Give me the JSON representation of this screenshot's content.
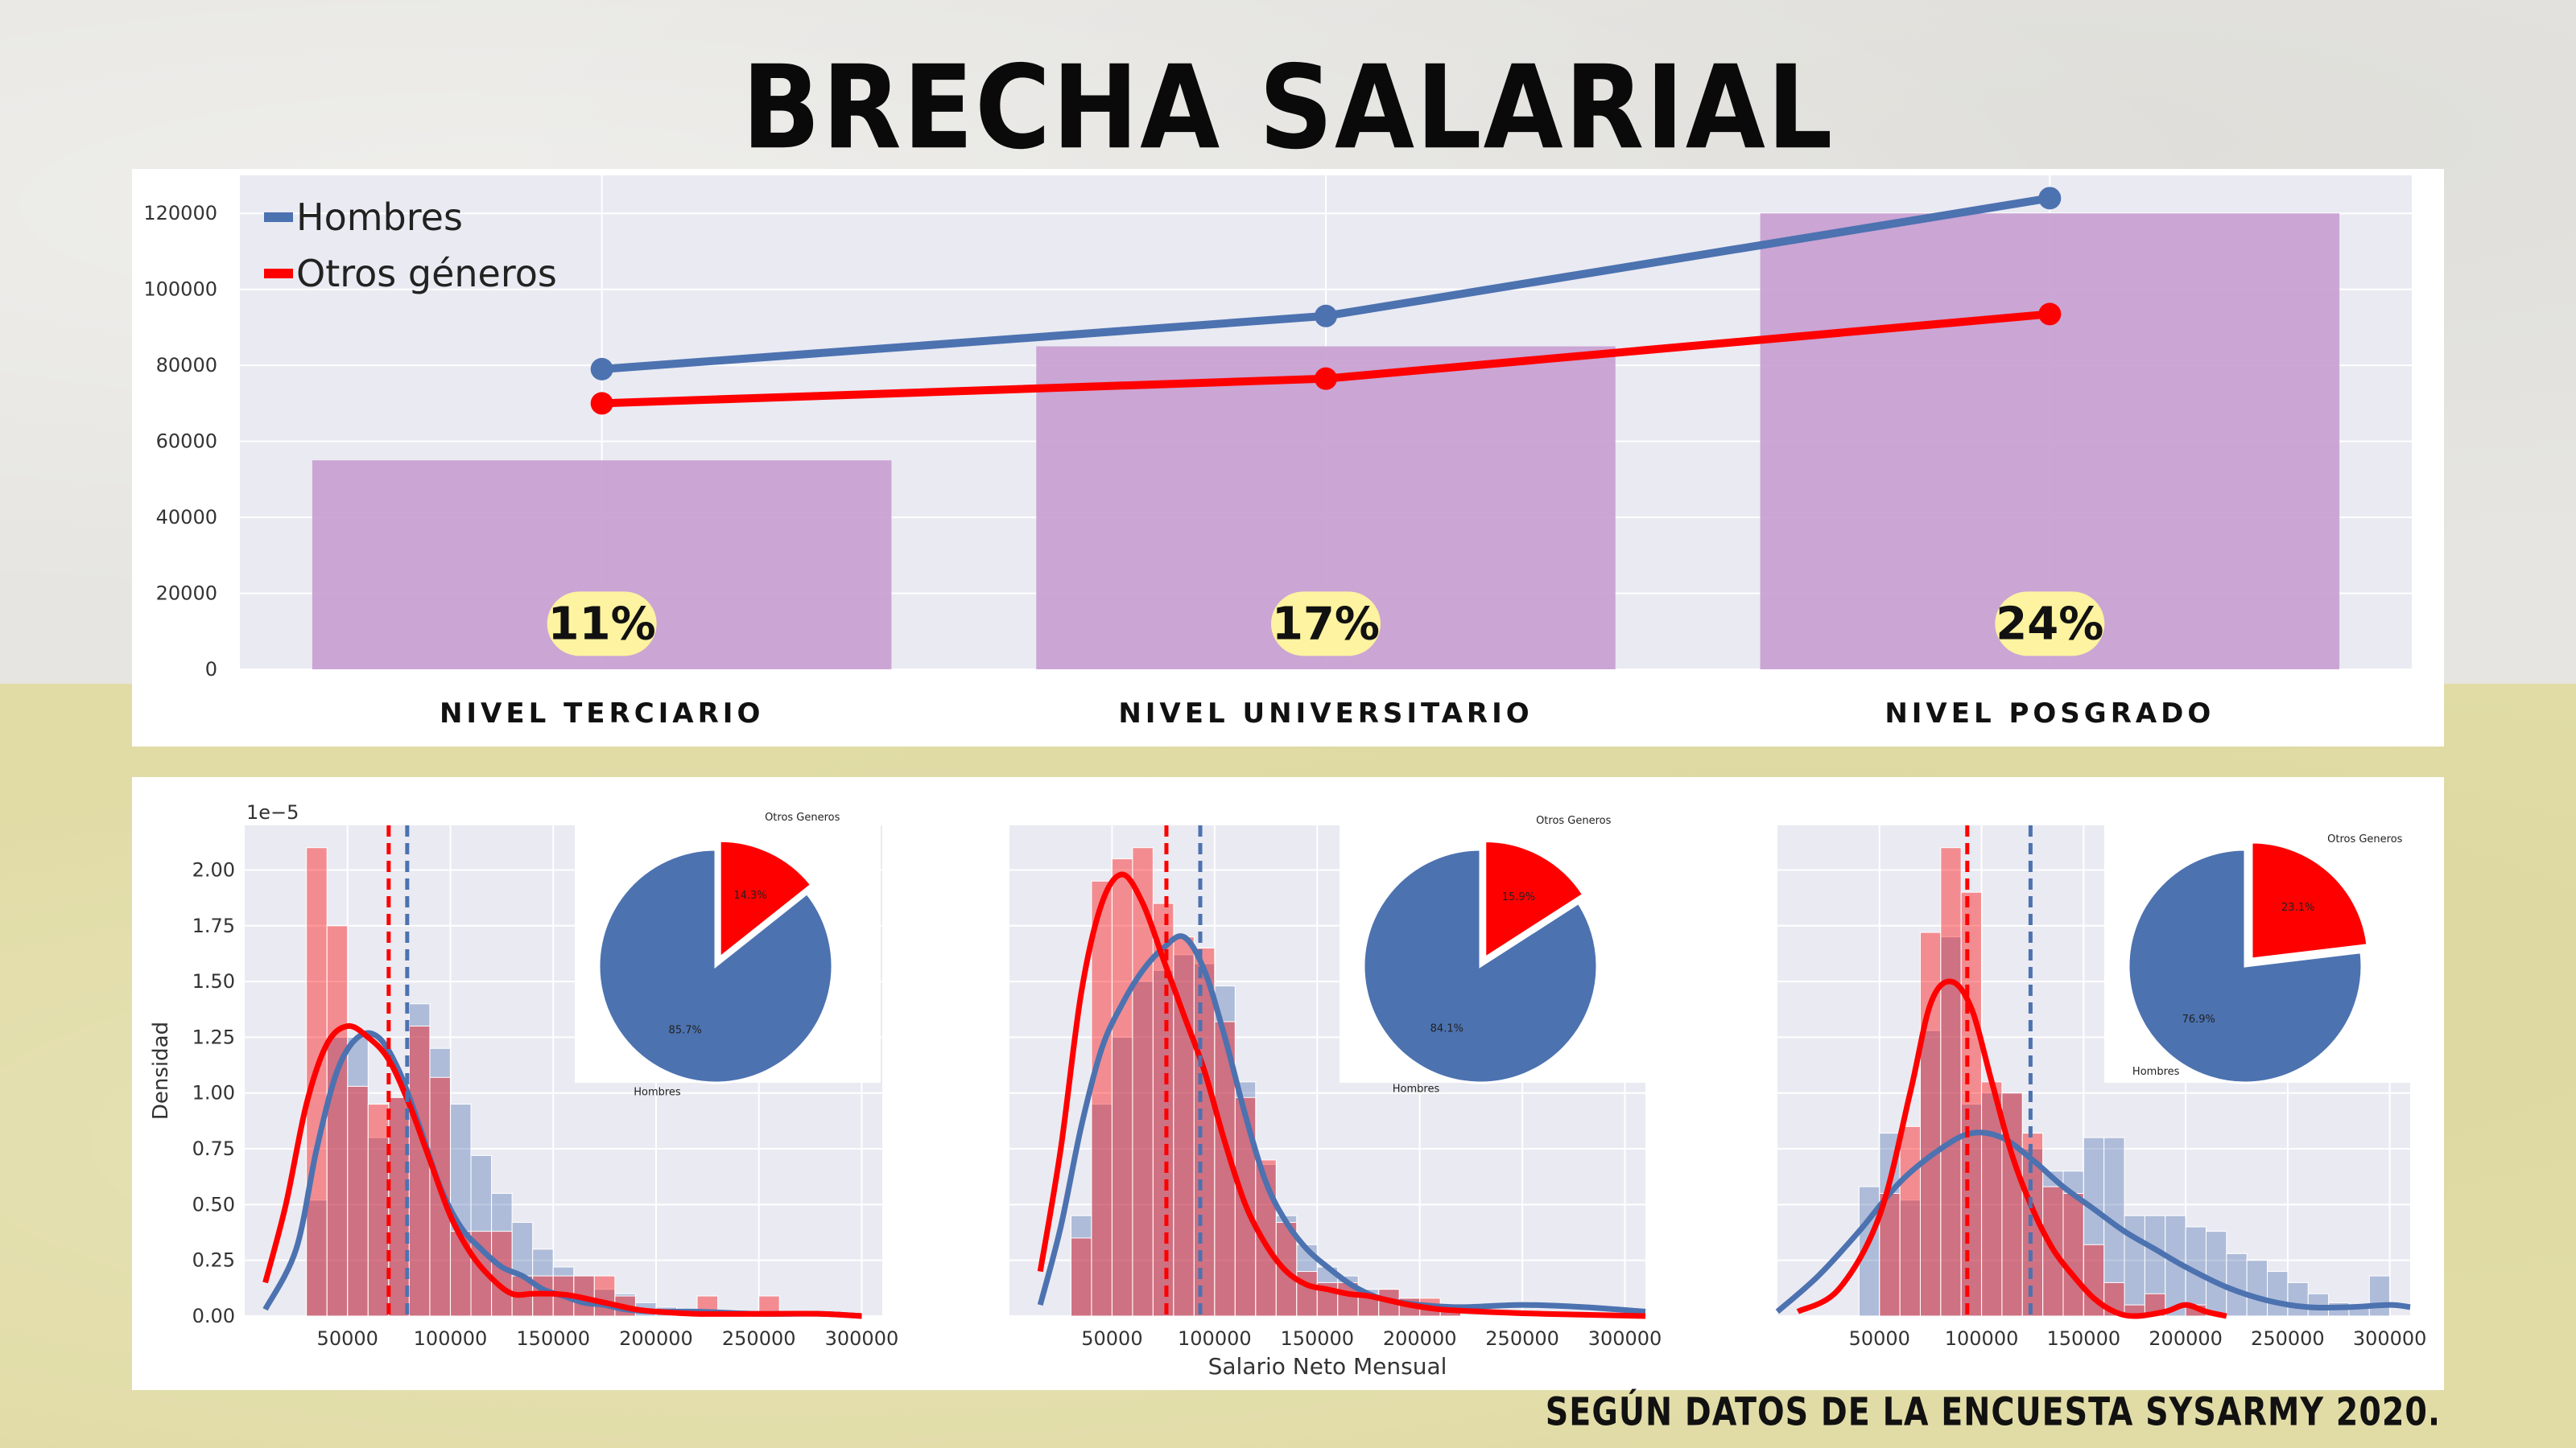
{
  "title": "BRECHA SALARIAL",
  "source_note": "SEGÚN DATOS DE LA ENCUESTA SYSARMY 2020.",
  "colors": {
    "hombres": "#4c72b0",
    "otros": "#ff0000",
    "bar": "#c9a1d2",
    "pill": "#fdf3a0",
    "plot_bg": "#eaeaf2"
  },
  "chart_data": [
    {
      "type": "bar",
      "categories": [
        "NIVEL TERCIARIO",
        "NIVEL UNIVERSITARIO",
        "NIVEL POSGRADO"
      ],
      "bar_values": [
        55000,
        85000,
        120000
      ],
      "bar_labels": [
        "11%",
        "17%",
        "24%"
      ],
      "series": [
        {
          "name": "Hombres",
          "type": "line",
          "values": [
            79000,
            93000,
            124000
          ]
        },
        {
          "name": "Otros géneros",
          "type": "line",
          "values": [
            70000,
            76500,
            93500
          ]
        }
      ],
      "ylim": [
        0,
        130000
      ],
      "yticks": [
        0,
        20000,
        40000,
        60000,
        80000,
        100000,
        120000
      ],
      "legend": "top-left",
      "grid": true
    },
    {
      "type": "histogram",
      "group": "NIVEL TERCIARIO",
      "ylabel": "Densidad",
      "y_scale_label": "1e−5",
      "xlim": [
        0,
        310000
      ],
      "ylim": [
        0,
        2.2
      ],
      "xticks": [
        50000,
        100000,
        150000,
        200000,
        250000,
        300000
      ],
      "yticks": [
        "0.00",
        "0.25",
        "0.50",
        "0.75",
        "1.00",
        "1.25",
        "1.50",
        "1.75",
        "2.00"
      ],
      "bin_edges": [
        20000,
        30000,
        40000,
        50000,
        60000,
        70000,
        80000,
        90000,
        100000,
        110000,
        120000,
        130000,
        140000,
        150000,
        160000,
        170000,
        180000,
        190000,
        200000,
        210000,
        220000,
        230000,
        240000,
        250000,
        260000,
        270000,
        280000
      ],
      "hombres_density": [
        0.0,
        0.52,
        1.25,
        1.25,
        0.8,
        0.98,
        1.4,
        1.2,
        0.95,
        0.72,
        0.55,
        0.42,
        0.3,
        0.22,
        0.18,
        0.12,
        0.1,
        0.06,
        0.04,
        0.02,
        0.02,
        0.02,
        0.0,
        0.0,
        0.0,
        0.0
      ],
      "otros_density": [
        0.0,
        2.1,
        1.75,
        1.03,
        0.95,
        0.98,
        1.3,
        1.07,
        0.38,
        0.38,
        0.38,
        0.18,
        0.18,
        0.18,
        0.18,
        0.18,
        0.09,
        0.0,
        0.0,
        0.0,
        0.09,
        0.0,
        0.0,
        0.09,
        0.0,
        0.0
      ],
      "hombres_kde": [
        [
          10000,
          0.03
        ],
        [
          25000,
          0.3
        ],
        [
          35000,
          0.75
        ],
        [
          45000,
          1.1
        ],
        [
          55000,
          1.25
        ],
        [
          65000,
          1.25
        ],
        [
          75000,
          1.1
        ],
        [
          85000,
          0.85
        ],
        [
          95000,
          0.58
        ],
        [
          105000,
          0.4
        ],
        [
          115000,
          0.3
        ],
        [
          125000,
          0.22
        ],
        [
          135000,
          0.18
        ],
        [
          145000,
          0.12
        ],
        [
          155000,
          0.09
        ],
        [
          165000,
          0.06
        ],
        [
          175000,
          0.05
        ],
        [
          185000,
          0.03
        ],
        [
          200000,
          0.02
        ],
        [
          220000,
          0.02
        ],
        [
          250000,
          0.01
        ],
        [
          280000,
          0.01
        ],
        [
          300000,
          0.0
        ]
      ],
      "otros_kde": [
        [
          10000,
          0.15
        ],
        [
          20000,
          0.5
        ],
        [
          30000,
          0.95
        ],
        [
          40000,
          1.22
        ],
        [
          50000,
          1.3
        ],
        [
          60000,
          1.25
        ],
        [
          70000,
          1.15
        ],
        [
          80000,
          0.95
        ],
        [
          90000,
          0.7
        ],
        [
          100000,
          0.45
        ],
        [
          110000,
          0.28
        ],
        [
          120000,
          0.17
        ],
        [
          130000,
          0.1
        ],
        [
          140000,
          0.1
        ],
        [
          150000,
          0.1
        ],
        [
          160000,
          0.09
        ],
        [
          170000,
          0.07
        ],
        [
          180000,
          0.05
        ],
        [
          190000,
          0.03
        ],
        [
          200000,
          0.02
        ],
        [
          220000,
          0.01
        ],
        [
          250000,
          0.01
        ],
        [
          280000,
          0.01
        ],
        [
          300000,
          0.0
        ]
      ],
      "mean_otros": 70000,
      "mean_hombres": 79000,
      "pie": {
        "slices": [
          {
            "label": "Otros Generos",
            "value": 14.3,
            "text": "14.3%"
          },
          {
            "label": "Hombres",
            "value": 85.7,
            "text": "85.7%"
          }
        ]
      }
    },
    {
      "type": "histogram",
      "group": "NIVEL UNIVERSITARIO",
      "xlabel": "Salario Neto Mensual",
      "xlim": [
        0,
        310000
      ],
      "ylim": [
        0,
        2.2
      ],
      "xticks": [
        50000,
        100000,
        150000,
        200000,
        250000,
        300000
      ],
      "bin_edges": [
        30000,
        40000,
        50000,
        60000,
        70000,
        80000,
        90000,
        100000,
        110000,
        120000,
        130000,
        140000,
        150000,
        160000,
        170000,
        180000,
        190000,
        200000,
        210000,
        220000
      ],
      "hombres_density": [
        0.45,
        0.95,
        1.25,
        1.5,
        1.55,
        1.62,
        1.58,
        1.48,
        1.05,
        0.68,
        0.45,
        0.32,
        0.22,
        0.18,
        0.12,
        0.12,
        0.08,
        0.04,
        0.02
      ],
      "otros_density": [
        0.35,
        1.95,
        2.05,
        2.1,
        1.85,
        1.7,
        1.65,
        1.32,
        0.98,
        0.7,
        0.42,
        0.2,
        0.15,
        0.15,
        0.1,
        0.12,
        0.08,
        0.08,
        0.05
      ],
      "hombres_kde": [
        [
          15000,
          0.05
        ],
        [
          25000,
          0.4
        ],
        [
          35000,
          0.85
        ],
        [
          45000,
          1.2
        ],
        [
          55000,
          1.4
        ],
        [
          65000,
          1.55
        ],
        [
          75000,
          1.65
        ],
        [
          85000,
          1.7
        ],
        [
          95000,
          1.55
        ],
        [
          105000,
          1.25
        ],
        [
          115000,
          0.9
        ],
        [
          125000,
          0.6
        ],
        [
          135000,
          0.42
        ],
        [
          145000,
          0.3
        ],
        [
          155000,
          0.22
        ],
        [
          165000,
          0.15
        ],
        [
          175000,
          0.1
        ],
        [
          185000,
          0.07
        ],
        [
          200000,
          0.05
        ],
        [
          220000,
          0.04
        ],
        [
          250000,
          0.05
        ],
        [
          280000,
          0.04
        ],
        [
          310000,
          0.02
        ]
      ],
      "otros_kde": [
        [
          15000,
          0.2
        ],
        [
          25000,
          0.75
        ],
        [
          35000,
          1.45
        ],
        [
          45000,
          1.85
        ],
        [
          55000,
          1.98
        ],
        [
          65000,
          1.85
        ],
        [
          75000,
          1.6
        ],
        [
          85000,
          1.35
        ],
        [
          95000,
          1.1
        ],
        [
          105000,
          0.78
        ],
        [
          115000,
          0.5
        ],
        [
          125000,
          0.32
        ],
        [
          135000,
          0.2
        ],
        [
          145000,
          0.14
        ],
        [
          155000,
          0.12
        ],
        [
          165000,
          0.1
        ],
        [
          175000,
          0.09
        ],
        [
          185000,
          0.07
        ],
        [
          195000,
          0.05
        ],
        [
          210000,
          0.03
        ],
        [
          230000,
          0.02
        ],
        [
          260000,
          0.01
        ],
        [
          310000,
          0.0
        ]
      ],
      "mean_otros": 76500,
      "mean_hombres": 93000,
      "pie": {
        "slices": [
          {
            "label": "Otros Generos",
            "value": 15.9,
            "text": "15.9%"
          },
          {
            "label": "Hombres",
            "value": 84.1,
            "text": "84.1%"
          }
        ]
      }
    },
    {
      "type": "histogram",
      "group": "NIVEL POSGRADO",
      "xlim": [
        0,
        310000
      ],
      "ylim": [
        0,
        2.2
      ],
      "xticks": [
        50000,
        100000,
        150000,
        200000,
        250000,
        300000
      ],
      "bin_edges": [
        40000,
        50000,
        60000,
        70000,
        80000,
        90000,
        100000,
        110000,
        120000,
        130000,
        140000,
        150000,
        160000,
        170000,
        180000,
        190000,
        200000,
        210000,
        220000,
        230000,
        240000,
        250000,
        260000,
        270000,
        280000,
        290000,
        300000
      ],
      "hombres_density": [
        0.58,
        0.82,
        0.52,
        1.28,
        1.7,
        0.95,
        1.0,
        1.0,
        0.75,
        0.65,
        0.65,
        0.8,
        0.8,
        0.45,
        0.45,
        0.45,
        0.4,
        0.38,
        0.28,
        0.25,
        0.2,
        0.15,
        0.1,
        0.06,
        0.05,
        0.18
      ],
      "otros_density": [
        0.0,
        0.55,
        0.85,
        1.72,
        2.1,
        1.9,
        1.05,
        1.0,
        0.82,
        0.58,
        0.55,
        0.32,
        0.15,
        0.05,
        0.1,
        0.0,
        0.05,
        0.0,
        0.0,
        0.0,
        0.0,
        0.0,
        0.0,
        0.0,
        0.0,
        0.0
      ],
      "hombres_kde": [
        [
          0,
          0.02
        ],
        [
          20000,
          0.18
        ],
        [
          40000,
          0.38
        ],
        [
          60000,
          0.6
        ],
        [
          80000,
          0.75
        ],
        [
          95000,
          0.82
        ],
        [
          110000,
          0.8
        ],
        [
          125000,
          0.7
        ],
        [
          140000,
          0.58
        ],
        [
          155000,
          0.48
        ],
        [
          170000,
          0.38
        ],
        [
          185000,
          0.3
        ],
        [
          200000,
          0.22
        ],
        [
          220000,
          0.13
        ],
        [
          240000,
          0.07
        ],
        [
          260000,
          0.04
        ],
        [
          280000,
          0.04
        ],
        [
          300000,
          0.05
        ],
        [
          310000,
          0.04
        ]
      ],
      "otros_kde": [
        [
          10000,
          0.02
        ],
        [
          30000,
          0.12
        ],
        [
          50000,
          0.45
        ],
        [
          65000,
          1.0
        ],
        [
          75000,
          1.4
        ],
        [
          85000,
          1.5
        ],
        [
          95000,
          1.38
        ],
        [
          105000,
          1.05
        ],
        [
          115000,
          0.72
        ],
        [
          125000,
          0.48
        ],
        [
          135000,
          0.3
        ],
        [
          145000,
          0.18
        ],
        [
          155000,
          0.08
        ],
        [
          165000,
          0.02
        ],
        [
          175000,
          0.0
        ],
        [
          190000,
          0.02
        ],
        [
          200000,
          0.05
        ],
        [
          210000,
          0.02
        ],
        [
          220000,
          0.0
        ]
      ],
      "mean_otros": 93000,
      "mean_hombres": 124000,
      "pie": {
        "slices": [
          {
            "label": "Otros Generos",
            "value": 23.1,
            "text": "23.1%"
          },
          {
            "label": "Hombres",
            "value": 76.9,
            "text": "76.9%"
          }
        ]
      }
    }
  ]
}
